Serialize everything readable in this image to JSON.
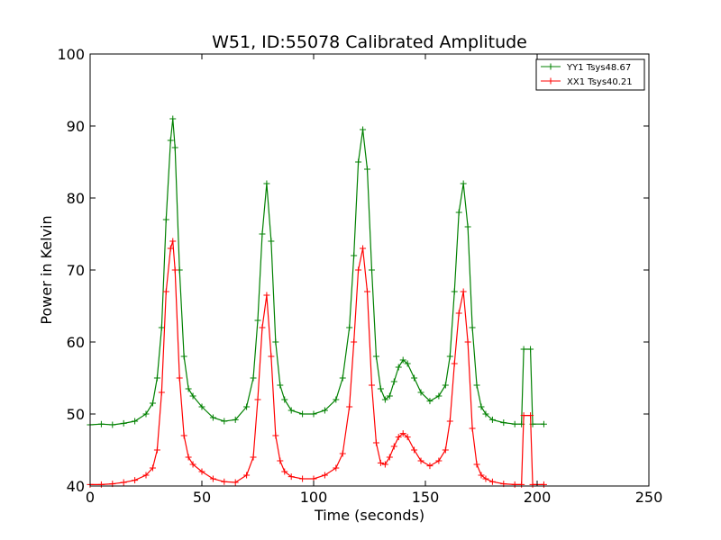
{
  "chart_data": {
    "type": "line",
    "title": "W51, ID:55078 Calibrated Amplitude",
    "xlabel": "Time (seconds)",
    "ylabel": "Power in Kelvin",
    "xlim": [
      0,
      250
    ],
    "ylim": [
      40,
      100
    ],
    "xticks": [
      0,
      50,
      100,
      150,
      200,
      250
    ],
    "yticks": [
      40,
      50,
      60,
      70,
      80,
      90,
      100
    ],
    "grid": false,
    "legend_position": "top-right",
    "marker": "+",
    "series": [
      {
        "name": "YY1 Tsys48.67",
        "color": "#008000",
        "x": [
          0,
          5,
          10,
          15,
          20,
          25,
          28,
          30,
          32,
          34,
          36,
          37,
          38,
          40,
          42,
          44,
          46,
          50,
          55,
          60,
          65,
          70,
          73,
          75,
          77,
          79,
          81,
          83,
          85,
          87,
          90,
          95,
          100,
          105,
          110,
          113,
          116,
          118,
          120,
          122,
          124,
          126,
          128,
          130,
          132,
          134,
          136,
          138,
          140,
          142,
          145,
          148,
          152,
          156,
          159,
          161,
          163,
          165,
          167,
          169,
          171,
          173,
          175,
          177,
          180,
          185,
          190,
          193,
          194,
          197,
          198,
          203
        ],
        "y": [
          48.5,
          48.6,
          48.5,
          48.7,
          49.0,
          50.0,
          51.5,
          55.0,
          62.0,
          77.0,
          88.0,
          91.0,
          87.0,
          70.0,
          58.0,
          53.5,
          52.5,
          51.0,
          49.5,
          49.0,
          49.2,
          51.0,
          55.0,
          63.0,
          75.0,
          82.0,
          74.0,
          60.0,
          54.0,
          52.0,
          50.5,
          50.0,
          50.0,
          50.5,
          52.0,
          55.0,
          62.0,
          72.0,
          85.0,
          89.5,
          84.0,
          70.0,
          58.0,
          53.5,
          52.0,
          52.5,
          54.5,
          56.5,
          57.5,
          57.0,
          55.0,
          53.0,
          51.8,
          52.5,
          54.0,
          58.0,
          67.0,
          78.0,
          82.0,
          76.0,
          62.0,
          54.0,
          51.0,
          50.0,
          49.2,
          48.8,
          48.6,
          48.6,
          59.0,
          59.0,
          48.6,
          48.6
        ]
      },
      {
        "name": "XX1 Tsys40.21",
        "color": "#ff0000",
        "x": [
          0,
          5,
          10,
          15,
          20,
          25,
          28,
          30,
          32,
          34,
          36,
          37,
          38,
          40,
          42,
          44,
          46,
          50,
          55,
          60,
          65,
          70,
          73,
          75,
          77,
          79,
          81,
          83,
          85,
          87,
          90,
          95,
          100,
          105,
          110,
          113,
          116,
          118,
          120,
          122,
          124,
          126,
          128,
          130,
          132,
          134,
          136,
          138,
          140,
          142,
          145,
          148,
          152,
          156,
          159,
          161,
          163,
          165,
          167,
          169,
          171,
          173,
          175,
          177,
          180,
          185,
          190,
          193,
          194,
          197,
          198,
          203
        ],
        "y": [
          40.2,
          40.2,
          40.3,
          40.5,
          40.8,
          41.5,
          42.5,
          45.0,
          53.0,
          67.0,
          73.0,
          74.0,
          70.0,
          55.0,
          47.0,
          44.0,
          43.0,
          42.0,
          41.0,
          40.6,
          40.5,
          41.5,
          44.0,
          52.0,
          62.0,
          66.5,
          58.0,
          47.0,
          43.5,
          42.0,
          41.3,
          41.0,
          41.0,
          41.5,
          42.5,
          44.5,
          51.0,
          60.0,
          70.0,
          73.0,
          67.0,
          54.0,
          46.0,
          43.2,
          43.0,
          44.0,
          45.5,
          46.8,
          47.3,
          46.8,
          45.0,
          43.5,
          42.8,
          43.5,
          45.0,
          49.0,
          57.0,
          64.0,
          67.0,
          60.0,
          48.0,
          43.0,
          41.5,
          41.0,
          40.6,
          40.3,
          40.2,
          40.2,
          49.8,
          49.8,
          40.2,
          40.2
        ]
      }
    ]
  }
}
